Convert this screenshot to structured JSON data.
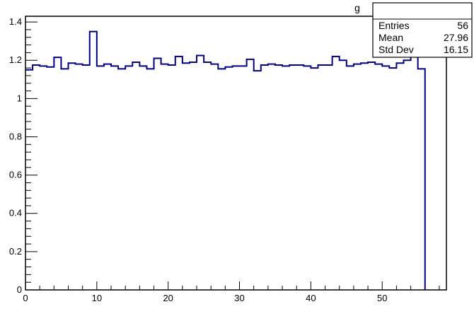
{
  "chart_data": {
    "type": "histogram",
    "title": "",
    "title_visible_fragment": "g",
    "xlabel": "",
    "ylabel": "",
    "xlim": [
      0,
      59
    ],
    "ylim": [
      0,
      1.43
    ],
    "x_ticks": [
      0,
      10,
      20,
      30,
      40,
      50
    ],
    "y_ticks": [
      0,
      0.2,
      0.4,
      0.6,
      0.8,
      1,
      1.2,
      1.4
    ],
    "x_tick_labels": [
      "0",
      "10",
      "20",
      "30",
      "40",
      "50"
    ],
    "y_tick_labels": [
      "0",
      "0.2",
      "0.4",
      "0.6",
      "0.8",
      "1",
      "1.2",
      "1.4"
    ],
    "bin_width": 1,
    "series": [
      {
        "color": "#000080",
        "values": [
          1.15,
          1.175,
          1.17,
          1.165,
          1.215,
          1.155,
          1.185,
          1.18,
          1.175,
          1.35,
          1.17,
          1.18,
          1.17,
          1.155,
          1.17,
          1.19,
          1.17,
          1.155,
          1.21,
          1.18,
          1.175,
          1.22,
          1.185,
          1.19,
          1.225,
          1.19,
          1.18,
          1.155,
          1.165,
          1.17,
          1.17,
          1.205,
          1.145,
          1.175,
          1.18,
          1.175,
          1.17,
          1.175,
          1.175,
          1.17,
          1.16,
          1.175,
          1.175,
          1.22,
          1.2,
          1.17,
          1.18,
          1.185,
          1.19,
          1.18,
          1.17,
          1.16,
          1.185,
          1.2,
          1.22,
          1.155
        ]
      }
    ],
    "stats_box": {
      "rows": [
        {
          "label": "Entries",
          "value": "56"
        },
        {
          "label": "Mean",
          "value": "27.96"
        },
        {
          "label": "Std Dev",
          "value": "16.15"
        }
      ]
    },
    "grid": false,
    "legend": "none"
  }
}
